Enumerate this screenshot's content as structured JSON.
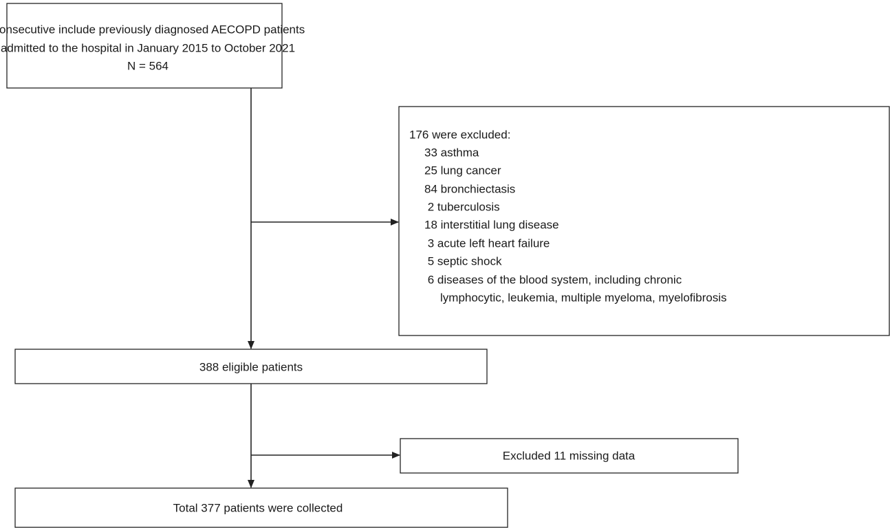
{
  "nodes": [
    {
      "lines": [
        "Consecutive include previously diagnosed AECOPD patients",
        "admitted to the hospital in January 2015 to October 2021",
        "N = 564"
      ]
    },
    {
      "title": "176 were excluded:",
      "items": [
        "33 asthma",
        "25 lung cancer",
        "84 bronchiectasis",
        " 2 tuberculosis",
        "18 interstitial lung disease",
        " 3 acute left heart failure",
        " 5 septic shock",
        " 6 diseases of the blood system, including chronic",
        "lymphocytic, leukemia, multiple myeloma, myelofibrosis"
      ]
    },
    {
      "lines": [
        "388 eligible patients"
      ]
    },
    {
      "lines": [
        "Excluded 11 missing data"
      ]
    },
    {
      "lines": [
        "Total 377 patients were collected"
      ]
    }
  ]
}
